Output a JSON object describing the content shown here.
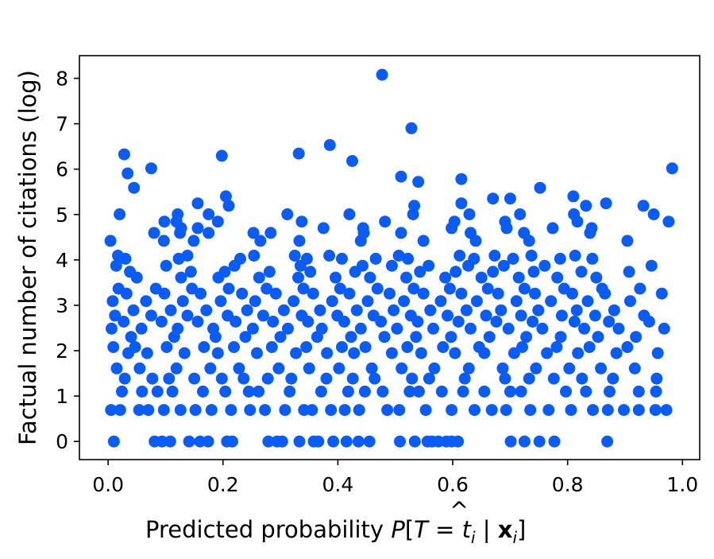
{
  "chart_data": {
    "type": "scatter",
    "xlabel": "Predicted probability P̂[T = tᵢ | 𝐱ᵢ]",
    "xlabel_parts": {
      "prefix": "Predicted probability ",
      "P": "P",
      "hat": "^",
      "bracket_open": "[",
      "T": "T",
      "equals": " = ",
      "t": "t",
      "i1": "i",
      "bar": " | ",
      "x": "x",
      "i2": "i",
      "bracket_close": "]"
    },
    "ylabel": "Factual number of citations (log)",
    "xlim": [
      -0.05,
      1.03
    ],
    "ylim": [
      -0.4,
      8.5
    ],
    "xticks": [
      0.0,
      0.2,
      0.4,
      0.6,
      0.8,
      1.0
    ],
    "xtick_labels": [
      "0.0",
      "0.2",
      "0.4",
      "0.6",
      "0.8",
      "1.0"
    ],
    "yticks": [
      0,
      1,
      2,
      3,
      4,
      5,
      6,
      7,
      8
    ],
    "ytick_labels": [
      "0",
      "1",
      "2",
      "3",
      "4",
      "5",
      "6",
      "7",
      "8"
    ],
    "grid": false,
    "legend": "none",
    "marker_color": "#0a5cf5",
    "points": [
      [
        0.01,
        0.0
      ],
      [
        0.081,
        0.0
      ],
      [
        0.094,
        0.0
      ],
      [
        0.108,
        0.0
      ],
      [
        0.141,
        0.0
      ],
      [
        0.16,
        0.0
      ],
      [
        0.174,
        0.0
      ],
      [
        0.207,
        0.0
      ],
      [
        0.216,
        0.0
      ],
      [
        0.279,
        0.0
      ],
      [
        0.294,
        0.0
      ],
      [
        0.303,
        0.0
      ],
      [
        0.333,
        0.0
      ],
      [
        0.358,
        0.0
      ],
      [
        0.366,
        0.0
      ],
      [
        0.392,
        0.0
      ],
      [
        0.415,
        0.0
      ],
      [
        0.436,
        0.0
      ],
      [
        0.455,
        0.0
      ],
      [
        0.508,
        0.0
      ],
      [
        0.534,
        0.0
      ],
      [
        0.556,
        0.0
      ],
      [
        0.564,
        0.0
      ],
      [
        0.575,
        0.0
      ],
      [
        0.589,
        0.0
      ],
      [
        0.598,
        0.0
      ],
      [
        0.609,
        0.0
      ],
      [
        0.701,
        0.0
      ],
      [
        0.725,
        0.0
      ],
      [
        0.751,
        0.0
      ],
      [
        0.777,
        0.0
      ],
      [
        0.869,
        0.0
      ],
      [
        0.005,
        0.693
      ],
      [
        0.021,
        0.693
      ],
      [
        0.054,
        0.693
      ],
      [
        0.07,
        0.693
      ],
      [
        0.097,
        0.693
      ],
      [
        0.126,
        0.693
      ],
      [
        0.152,
        0.693
      ],
      [
        0.18,
        0.693
      ],
      [
        0.214,
        0.693
      ],
      [
        0.247,
        0.693
      ],
      [
        0.273,
        0.693
      ],
      [
        0.308,
        0.693
      ],
      [
        0.341,
        0.693
      ],
      [
        0.355,
        0.693
      ],
      [
        0.388,
        0.693
      ],
      [
        0.412,
        0.693
      ],
      [
        0.437,
        0.693
      ],
      [
        0.486,
        0.693
      ],
      [
        0.507,
        0.693
      ],
      [
        0.553,
        0.693
      ],
      [
        0.598,
        0.693
      ],
      [
        0.638,
        0.693
      ],
      [
        0.668,
        0.693
      ],
      [
        0.693,
        0.693
      ],
      [
        0.735,
        0.693
      ],
      [
        0.767,
        0.693
      ],
      [
        0.806,
        0.693
      ],
      [
        0.844,
        0.693
      ],
      [
        0.87,
        0.693
      ],
      [
        0.898,
        0.693
      ],
      [
        0.924,
        0.693
      ],
      [
        0.953,
        0.693
      ],
      [
        0.972,
        0.693
      ],
      [
        0.024,
        1.099
      ],
      [
        0.059,
        1.099
      ],
      [
        0.086,
        1.099
      ],
      [
        0.112,
        1.099
      ],
      [
        0.165,
        1.099
      ],
      [
        0.204,
        1.099
      ],
      [
        0.245,
        1.099
      ],
      [
        0.262,
        1.099
      ],
      [
        0.316,
        1.099
      ],
      [
        0.371,
        1.099
      ],
      [
        0.418,
        1.099
      ],
      [
        0.447,
        1.099
      ],
      [
        0.478,
        1.099
      ],
      [
        0.525,
        1.099
      ],
      [
        0.541,
        1.099
      ],
      [
        0.581,
        1.099
      ],
      [
        0.618,
        1.099
      ],
      [
        0.655,
        1.099
      ],
      [
        0.7,
        1.099
      ],
      [
        0.719,
        1.099
      ],
      [
        0.797,
        1.099
      ],
      [
        0.832,
        1.099
      ],
      [
        0.873,
        1.099
      ],
      [
        0.924,
        1.099
      ],
      [
        0.954,
        1.099
      ],
      [
        0.029,
        1.386
      ],
      [
        0.077,
        1.386
      ],
      [
        0.106,
        1.386
      ],
      [
        0.15,
        1.386
      ],
      [
        0.198,
        1.386
      ],
      [
        0.236,
        1.386
      ],
      [
        0.278,
        1.386
      ],
      [
        0.319,
        1.386
      ],
      [
        0.38,
        1.386
      ],
      [
        0.426,
        1.386
      ],
      [
        0.464,
        1.386
      ],
      [
        0.529,
        1.386
      ],
      [
        0.559,
        1.386
      ],
      [
        0.621,
        1.386
      ],
      [
        0.691,
        1.386
      ],
      [
        0.733,
        1.386
      ],
      [
        0.776,
        1.386
      ],
      [
        0.825,
        1.386
      ],
      [
        0.879,
        1.386
      ],
      [
        0.955,
        1.386
      ],
      [
        0.015,
        1.609
      ],
      [
        0.055,
        1.609
      ],
      [
        0.119,
        1.609
      ],
      [
        0.178,
        1.609
      ],
      [
        0.228,
        1.609
      ],
      [
        0.297,
        1.609
      ],
      [
        0.35,
        1.609
      ],
      [
        0.402,
        1.609
      ],
      [
        0.459,
        1.609
      ],
      [
        0.511,
        1.609
      ],
      [
        0.568,
        1.609
      ],
      [
        0.628,
        1.609
      ],
      [
        0.687,
        1.609
      ],
      [
        0.745,
        1.609
      ],
      [
        0.803,
        1.609
      ],
      [
        0.858,
        1.609
      ],
      [
        0.917,
        1.609
      ],
      [
        0.035,
        1.946
      ],
      [
        0.068,
        1.946
      ],
      [
        0.133,
        1.946
      ],
      [
        0.191,
        1.946
      ],
      [
        0.259,
        1.946
      ],
      [
        0.327,
        1.946
      ],
      [
        0.381,
        1.946
      ],
      [
        0.428,
        1.946
      ],
      [
        0.494,
        1.946
      ],
      [
        0.545,
        1.946
      ],
      [
        0.604,
        1.946
      ],
      [
        0.655,
        1.946
      ],
      [
        0.707,
        1.946
      ],
      [
        0.764,
        1.946
      ],
      [
        0.818,
        1.946
      ],
      [
        0.885,
        1.946
      ],
      [
        0.957,
        1.946
      ],
      [
        0.009,
        2.079
      ],
      [
        0.047,
        2.079
      ],
      [
        0.102,
        2.079
      ],
      [
        0.167,
        2.079
      ],
      [
        0.219,
        2.079
      ],
      [
        0.285,
        2.079
      ],
      [
        0.345,
        2.079
      ],
      [
        0.407,
        2.079
      ],
      [
        0.448,
        2.079
      ],
      [
        0.521,
        2.079
      ],
      [
        0.583,
        2.079
      ],
      [
        0.646,
        2.079
      ],
      [
        0.721,
        2.079
      ],
      [
        0.781,
        2.079
      ],
      [
        0.838,
        2.079
      ],
      [
        0.904,
        2.079
      ],
      [
        0.04,
        2.303
      ],
      [
        0.115,
        2.303
      ],
      [
        0.187,
        2.303
      ],
      [
        0.239,
        2.303
      ],
      [
        0.3,
        2.303
      ],
      [
        0.364,
        2.303
      ],
      [
        0.423,
        2.303
      ],
      [
        0.481,
        2.303
      ],
      [
        0.536,
        2.303
      ],
      [
        0.597,
        2.303
      ],
      [
        0.664,
        2.303
      ],
      [
        0.728,
        2.303
      ],
      [
        0.788,
        2.303
      ],
      [
        0.853,
        2.303
      ],
      [
        0.919,
        2.303
      ],
      [
        0.006,
        2.485
      ],
      [
        0.058,
        2.485
      ],
      [
        0.121,
        2.485
      ],
      [
        0.183,
        2.485
      ],
      [
        0.252,
        2.485
      ],
      [
        0.313,
        2.485
      ],
      [
        0.372,
        2.485
      ],
      [
        0.44,
        2.485
      ],
      [
        0.503,
        2.485
      ],
      [
        0.566,
        2.485
      ],
      [
        0.631,
        2.485
      ],
      [
        0.697,
        2.485
      ],
      [
        0.756,
        2.485
      ],
      [
        0.829,
        2.485
      ],
      [
        0.889,
        2.485
      ],
      [
        0.968,
        2.485
      ],
      [
        0.027,
        2.639
      ],
      [
        0.093,
        2.639
      ],
      [
        0.156,
        2.639
      ],
      [
        0.222,
        2.639
      ],
      [
        0.287,
        2.639
      ],
      [
        0.348,
        2.639
      ],
      [
        0.411,
        2.639
      ],
      [
        0.475,
        2.639
      ],
      [
        0.539,
        2.639
      ],
      [
        0.61,
        2.639
      ],
      [
        0.676,
        2.639
      ],
      [
        0.739,
        2.639
      ],
      [
        0.812,
        2.639
      ],
      [
        0.872,
        2.639
      ],
      [
        0.942,
        2.639
      ],
      [
        0.012,
        2.773
      ],
      [
        0.075,
        2.773
      ],
      [
        0.138,
        2.773
      ],
      [
        0.208,
        2.773
      ],
      [
        0.27,
        2.773
      ],
      [
        0.337,
        2.773
      ],
      [
        0.399,
        2.773
      ],
      [
        0.462,
        2.773
      ],
      [
        0.527,
        2.773
      ],
      [
        0.591,
        2.773
      ],
      [
        0.658,
        2.773
      ],
      [
        0.719,
        2.773
      ],
      [
        0.79,
        2.773
      ],
      [
        0.848,
        2.773
      ],
      [
        0.933,
        2.773
      ],
      [
        0.044,
        2.89
      ],
      [
        0.109,
        2.89
      ],
      [
        0.171,
        2.89
      ],
      [
        0.242,
        2.89
      ],
      [
        0.306,
        2.89
      ],
      [
        0.369,
        2.89
      ],
      [
        0.433,
        2.89
      ],
      [
        0.497,
        2.89
      ],
      [
        0.561,
        2.89
      ],
      [
        0.624,
        2.89
      ],
      [
        0.684,
        2.89
      ],
      [
        0.749,
        2.89
      ],
      [
        0.816,
        2.89
      ],
      [
        0.881,
        2.89
      ],
      [
        0.008,
        3.091
      ],
      [
        0.066,
        3.091
      ],
      [
        0.13,
        3.091
      ],
      [
        0.196,
        3.091
      ],
      [
        0.256,
        3.091
      ],
      [
        0.323,
        3.091
      ],
      [
        0.39,
        3.091
      ],
      [
        0.452,
        3.091
      ],
      [
        0.515,
        3.091
      ],
      [
        0.579,
        3.091
      ],
      [
        0.642,
        3.091
      ],
      [
        0.711,
        3.091
      ],
      [
        0.771,
        3.091
      ],
      [
        0.835,
        3.091
      ],
      [
        0.909,
        3.091
      ],
      [
        0.032,
        3.258
      ],
      [
        0.098,
        3.258
      ],
      [
        0.161,
        3.258
      ],
      [
        0.233,
        3.258
      ],
      [
        0.292,
        3.258
      ],
      [
        0.357,
        3.258
      ],
      [
        0.42,
        3.258
      ],
      [
        0.49,
        3.258
      ],
      [
        0.549,
        3.258
      ],
      [
        0.615,
        3.258
      ],
      [
        0.679,
        3.258
      ],
      [
        0.743,
        3.258
      ],
      [
        0.808,
        3.258
      ],
      [
        0.865,
        3.258
      ],
      [
        0.964,
        3.258
      ],
      [
        0.018,
        3.367
      ],
      [
        0.083,
        3.367
      ],
      [
        0.146,
        3.367
      ],
      [
        0.21,
        3.367
      ],
      [
        0.276,
        3.367
      ],
      [
        0.34,
        3.367
      ],
      [
        0.404,
        3.367
      ],
      [
        0.469,
        3.367
      ],
      [
        0.532,
        3.367
      ],
      [
        0.595,
        3.367
      ],
      [
        0.661,
        3.367
      ],
      [
        0.725,
        3.367
      ],
      [
        0.794,
        3.367
      ],
      [
        0.86,
        3.367
      ],
      [
        0.926,
        3.367
      ],
      [
        0.05,
        3.611
      ],
      [
        0.127,
        3.611
      ],
      [
        0.192,
        3.611
      ],
      [
        0.263,
        3.611
      ],
      [
        0.331,
        3.611
      ],
      [
        0.396,
        3.611
      ],
      [
        0.456,
        3.611
      ],
      [
        0.519,
        3.611
      ],
      [
        0.587,
        3.611
      ],
      [
        0.65,
        3.611
      ],
      [
        0.715,
        3.611
      ],
      [
        0.782,
        3.611
      ],
      [
        0.85,
        3.611
      ],
      [
        0.038,
        3.738
      ],
      [
        0.144,
        3.738
      ],
      [
        0.203,
        3.738
      ],
      [
        0.281,
        3.738
      ],
      [
        0.352,
        3.738
      ],
      [
        0.43,
        3.738
      ],
      [
        0.543,
        3.738
      ],
      [
        0.605,
        3.738
      ],
      [
        0.67,
        3.738
      ],
      [
        0.741,
        3.738
      ],
      [
        0.824,
        3.738
      ],
      [
        0.907,
        3.738
      ],
      [
        0.014,
        3.871
      ],
      [
        0.101,
        3.871
      ],
      [
        0.22,
        3.871
      ],
      [
        0.335,
        3.871
      ],
      [
        0.443,
        3.871
      ],
      [
        0.494,
        3.871
      ],
      [
        0.558,
        3.871
      ],
      [
        0.627,
        3.871
      ],
      [
        0.689,
        3.871
      ],
      [
        0.76,
        3.871
      ],
      [
        0.946,
        3.871
      ],
      [
        0.03,
        4.025
      ],
      [
        0.123,
        4.025
      ],
      [
        0.23,
        4.025
      ],
      [
        0.346,
        4.025
      ],
      [
        0.407,
        4.025
      ],
      [
        0.466,
        4.025
      ],
      [
        0.522,
        4.025
      ],
      [
        0.637,
        4.025
      ],
      [
        0.705,
        4.025
      ],
      [
        0.787,
        4.025
      ],
      [
        0.843,
        4.025
      ],
      [
        0.017,
        4.094
      ],
      [
        0.138,
        4.094
      ],
      [
        0.254,
        4.094
      ],
      [
        0.325,
        4.094
      ],
      [
        0.385,
        4.094
      ],
      [
        0.506,
        4.094
      ],
      [
        0.612,
        4.094
      ],
      [
        0.673,
        4.094
      ],
      [
        0.737,
        4.094
      ],
      [
        0.813,
        4.094
      ],
      [
        0.004,
        4.419
      ],
      [
        0.097,
        4.419
      ],
      [
        0.149,
        4.419
      ],
      [
        0.265,
        4.419
      ],
      [
        0.333,
        4.419
      ],
      [
        0.44,
        4.419
      ],
      [
        0.549,
        4.419
      ],
      [
        0.64,
        4.419
      ],
      [
        0.733,
        4.419
      ],
      [
        0.904,
        4.419
      ],
      [
        0.08,
        4.595
      ],
      [
        0.125,
        4.595
      ],
      [
        0.175,
        4.595
      ],
      [
        0.253,
        4.595
      ],
      [
        0.283,
        4.595
      ],
      [
        0.445,
        4.595
      ],
      [
        0.51,
        4.595
      ],
      [
        0.631,
        4.595
      ],
      [
        0.724,
        4.595
      ],
      [
        0.839,
        4.595
      ],
      [
        0.127,
        4.7
      ],
      [
        0.156,
        4.7
      ],
      [
        0.375,
        4.7
      ],
      [
        0.444,
        4.7
      ],
      [
        0.598,
        4.7
      ],
      [
        0.694,
        4.7
      ],
      [
        0.774,
        4.7
      ],
      [
        0.842,
        4.7
      ],
      [
        0.098,
        4.844
      ],
      [
        0.119,
        4.844
      ],
      [
        0.191,
        4.844
      ],
      [
        0.337,
        4.844
      ],
      [
        0.482,
        4.844
      ],
      [
        0.603,
        4.844
      ],
      [
        0.691,
        4.844
      ],
      [
        0.817,
        4.844
      ],
      [
        0.976,
        4.844
      ],
      [
        0.02,
        5.004
      ],
      [
        0.121,
        5.004
      ],
      [
        0.175,
        5.004
      ],
      [
        0.312,
        5.004
      ],
      [
        0.42,
        5.004
      ],
      [
        0.531,
        5.004
      ],
      [
        0.629,
        5.004
      ],
      [
        0.717,
        5.004
      ],
      [
        0.811,
        5.004
      ],
      [
        0.95,
        5.004
      ],
      [
        0.21,
        5.193
      ],
      [
        0.533,
        5.193
      ],
      [
        0.832,
        5.193
      ],
      [
        0.932,
        5.193
      ],
      [
        0.156,
        5.247
      ],
      [
        0.615,
        5.247
      ],
      [
        0.867,
        5.247
      ],
      [
        0.045,
        5.588
      ],
      [
        0.752,
        5.588
      ],
      [
        0.205,
        5.401
      ],
      [
        0.81,
        5.401
      ],
      [
        0.67,
        5.352
      ],
      [
        0.7,
        5.352
      ],
      [
        0.034,
        5.905
      ],
      [
        0.51,
        5.835
      ],
      [
        0.54,
        5.72
      ],
      [
        0.615,
        5.781
      ],
      [
        0.075,
        6.017
      ],
      [
        0.982,
        6.017
      ],
      [
        0.028,
        6.326
      ],
      [
        0.198,
        6.295
      ],
      [
        0.332,
        6.343
      ],
      [
        0.425,
        6.179
      ],
      [
        0.386,
        6.531
      ],
      [
        0.528,
        6.9
      ],
      [
        0.477,
        8.079
      ]
    ]
  }
}
